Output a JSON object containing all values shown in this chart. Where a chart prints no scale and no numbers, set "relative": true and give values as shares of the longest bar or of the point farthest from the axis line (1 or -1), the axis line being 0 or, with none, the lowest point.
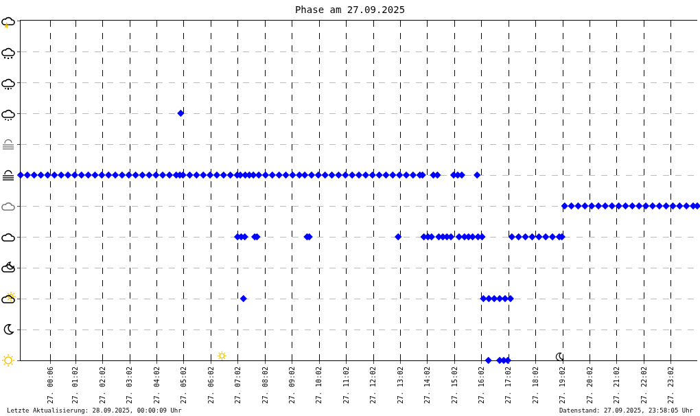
{
  "chart_data": {
    "type": "scatter",
    "title": "Phase am 27.09.2025",
    "relative": true,
    "marker": "diamond",
    "grid": true,
    "annotations": [
      "Letzte Aktualisierung: 28.09.2025, 00:00:09 Uhr",
      "Datenstand: 27.09.2025, 23:58:05 Uhr"
    ],
    "xlim": [
      "2025-09-26T23:00",
      "2025-09-28T00:00"
    ],
    "xticks": [
      {
        "value": "2025-09-27T00:06",
        "label": "27. 00:06"
      },
      {
        "value": "2025-09-27T01:02",
        "label": "27. 01:02"
      },
      {
        "value": "2025-09-27T02:02",
        "label": "27. 02:02"
      },
      {
        "value": "2025-09-27T03:02",
        "label": "27. 03:02"
      },
      {
        "value": "2025-09-27T04:02",
        "label": "27. 04:02"
      },
      {
        "value": "2025-09-27T05:02",
        "label": "27. 05:02"
      },
      {
        "value": "2025-09-27T06:02",
        "label": "27. 06:02"
      },
      {
        "value": "2025-09-27T07:02",
        "label": "27. 07:02"
      },
      {
        "value": "2025-09-27T08:02",
        "label": "27. 08:02"
      },
      {
        "value": "2025-09-27T09:02",
        "label": "27. 09:02"
      },
      {
        "value": "2025-09-27T10:02",
        "label": "27. 10:02"
      },
      {
        "value": "2025-09-27T11:02",
        "label": "27. 11:02"
      },
      {
        "value": "2025-09-27T12:02",
        "label": "27. 12:02"
      },
      {
        "value": "2025-09-27T13:02",
        "label": "27. 13:02"
      },
      {
        "value": "2025-09-27T14:02",
        "label": "27. 14:02"
      },
      {
        "value": "2025-09-27T15:02",
        "label": "27. 15:02"
      },
      {
        "value": "2025-09-27T16:02",
        "label": "27. 16:02"
      },
      {
        "value": "2025-09-27T17:02",
        "label": "27. 17:02"
      },
      {
        "value": "2025-09-27T18:02",
        "label": "27. 18:02"
      },
      {
        "value": "2025-09-27T19:02",
        "label": "27. 19:02"
      },
      {
        "value": "2025-09-27T20:02",
        "label": "27. 20:02"
      },
      {
        "value": "2025-09-27T21:02",
        "label": "27. 21:02"
      },
      {
        "value": "2025-09-27T22:02",
        "label": "27. 22:02"
      },
      {
        "value": "2025-09-27T23:02",
        "label": "27. 23:02"
      }
    ],
    "series": [
      {
        "color": "#0000ff",
        "x": [
          "2025-09-26T23:00",
          "2025-09-26T23:15",
          "2025-09-26T23:30",
          "2025-09-26T23:45",
          "2025-09-27T00:00",
          "2025-09-27T00:15",
          "2025-09-27T00:30",
          "2025-09-27T00:45",
          "2025-09-27T01:00",
          "2025-09-27T01:15",
          "2025-09-27T01:30",
          "2025-09-27T01:45",
          "2025-09-27T02:00",
          "2025-09-27T02:15",
          "2025-09-27T02:30",
          "2025-09-27T02:45",
          "2025-09-27T03:00",
          "2025-09-27T03:15",
          "2025-09-27T03:30",
          "2025-09-27T03:45",
          "2025-09-27T04:00",
          "2025-09-27T04:15",
          "2025-09-27T04:30",
          "2025-09-27T04:45",
          "2025-09-27T04:53",
          "2025-09-27T04:55",
          "2025-09-27T05:00",
          "2025-09-27T05:15",
          "2025-09-27T05:30",
          "2025-09-27T05:45",
          "2025-09-27T06:00",
          "2025-09-27T06:15",
          "2025-09-27T06:30",
          "2025-09-27T06:45",
          "2025-09-27T07:00",
          "2025-09-27T07:07",
          "2025-09-27T07:01",
          "2025-09-27T07:09",
          "2025-09-27T07:17",
          "2025-09-27T07:14",
          "2025-09-27T07:18",
          "2025-09-27T07:27",
          "2025-09-27T07:36",
          "2025-09-27T07:39",
          "2025-09-27T07:44",
          "2025-09-27T07:48",
          "2025-09-27T08:03",
          "2025-09-27T08:18",
          "2025-09-27T08:33",
          "2025-09-27T08:48",
          "2025-09-27T09:03",
          "2025-09-27T09:18",
          "2025-09-27T09:30",
          "2025-09-27T09:35",
          "2025-09-27T09:40",
          "2025-09-27T09:45",
          "2025-09-27T10:00",
          "2025-09-27T10:15",
          "2025-09-27T10:30",
          "2025-09-27T10:45",
          "2025-09-27T11:00",
          "2025-09-27T11:15",
          "2025-09-27T11:30",
          "2025-09-27T11:45",
          "2025-09-27T12:00",
          "2025-09-27T12:15",
          "2025-09-27T12:30",
          "2025-09-27T12:45",
          "2025-09-27T13:00",
          "2025-09-27T13:15",
          "2025-09-27T13:30",
          "2025-09-27T13:45",
          "2025-09-27T13:51",
          "2025-09-27T12:57",
          "2025-09-27T13:54",
          "2025-09-27T14:03",
          "2025-09-27T14:11",
          "2025-09-27T14:15",
          "2025-09-27T14:24",
          "2025-09-27T14:27",
          "2025-09-27T14:36",
          "2025-09-27T14:45",
          "2025-09-27T14:54",
          "2025-09-27T15:00",
          "2025-09-27T15:09",
          "2025-09-27T15:18",
          "2025-09-27T15:12",
          "2025-09-27T15:24",
          "2025-09-27T15:33",
          "2025-09-27T15:42",
          "2025-09-27T15:52",
          "2025-09-27T15:54",
          "2025-09-27T16:03",
          "2025-09-27T16:06",
          "2025-09-27T16:18",
          "2025-09-27T16:30",
          "2025-09-27T16:42",
          "2025-09-27T16:54",
          "2025-09-27T17:06",
          "2025-09-27T16:17",
          "2025-09-27T16:42",
          "2025-09-27T16:51",
          "2025-09-27T17:00",
          "2025-09-27T17:09",
          "2025-09-27T17:24",
          "2025-09-27T17:39",
          "2025-09-27T17:54",
          "2025-09-27T18:09",
          "2025-09-27T18:24",
          "2025-09-27T18:39",
          "2025-09-27T18:54",
          "2025-09-27T19:00",
          "2025-09-27T19:06",
          "2025-09-27T19:21",
          "2025-09-27T19:36",
          "2025-09-27T19:51",
          "2025-09-27T20:06",
          "2025-09-27T20:21",
          "2025-09-27T20:36",
          "2025-09-27T20:51",
          "2025-09-27T21:06",
          "2025-09-27T21:21",
          "2025-09-27T21:36",
          "2025-09-27T21:51",
          "2025-09-27T22:06",
          "2025-09-27T22:21",
          "2025-09-27T22:36",
          "2025-09-27T22:51",
          "2025-09-27T23:06",
          "2025-09-27T23:21",
          "2025-09-27T23:36",
          "2025-09-27T23:51",
          "2025-09-28T00:00"
        ],
        "values": [
          0.75,
          0.75,
          0.75,
          0.75,
          0.75,
          0.75,
          0.75,
          0.75,
          0.75,
          0.75,
          0.75,
          0.75,
          0.75,
          0.75,
          0.75,
          0.75,
          0.75,
          0.75,
          0.75,
          0.75,
          0.75,
          0.75,
          0.75,
          0.75,
          0.75,
          1,
          0.75,
          0.75,
          0.75,
          0.75,
          0.75,
          0.75,
          0.75,
          0.75,
          0.75,
          0.75,
          0.5,
          0.5,
          0.5,
          0.25,
          0.75,
          0.75,
          0.75,
          0.5,
          0.5,
          0.75,
          0.75,
          0.75,
          0.75,
          0.75,
          0.75,
          0.75,
          0.75,
          0.5,
          0.5,
          0.75,
          0.75,
          0.75,
          0.75,
          0.75,
          0.75,
          0.75,
          0.75,
          0.75,
          0.75,
          0.75,
          0.75,
          0.75,
          0.75,
          0.75,
          0.75,
          0.75,
          0.75,
          0.5,
          0.5,
          0.5,
          0.5,
          0.75,
          0.75,
          0.5,
          0.5,
          0.5,
          0.5,
          0.75,
          0.75,
          0.75,
          0.5,
          0.5,
          0.5,
          0.5,
          0.75,
          0.5,
          0.5,
          0.25,
          0.25,
          0.25,
          0.25,
          0.25,
          0.25,
          0,
          0,
          0,
          0,
          0.5,
          0.5,
          0.5,
          0.5,
          0.5,
          0.5,
          0.5,
          0.5,
          0.5,
          0.625,
          0.625,
          0.625,
          0.625,
          0.625,
          0.625,
          0.625,
          0.625,
          0.625,
          0.625,
          0.625,
          0.625,
          0.625,
          0.625,
          0.625,
          0.625,
          0.625,
          0.625,
          0.625,
          0.625,
          0.625
        ]
      }
    ]
  }
}
